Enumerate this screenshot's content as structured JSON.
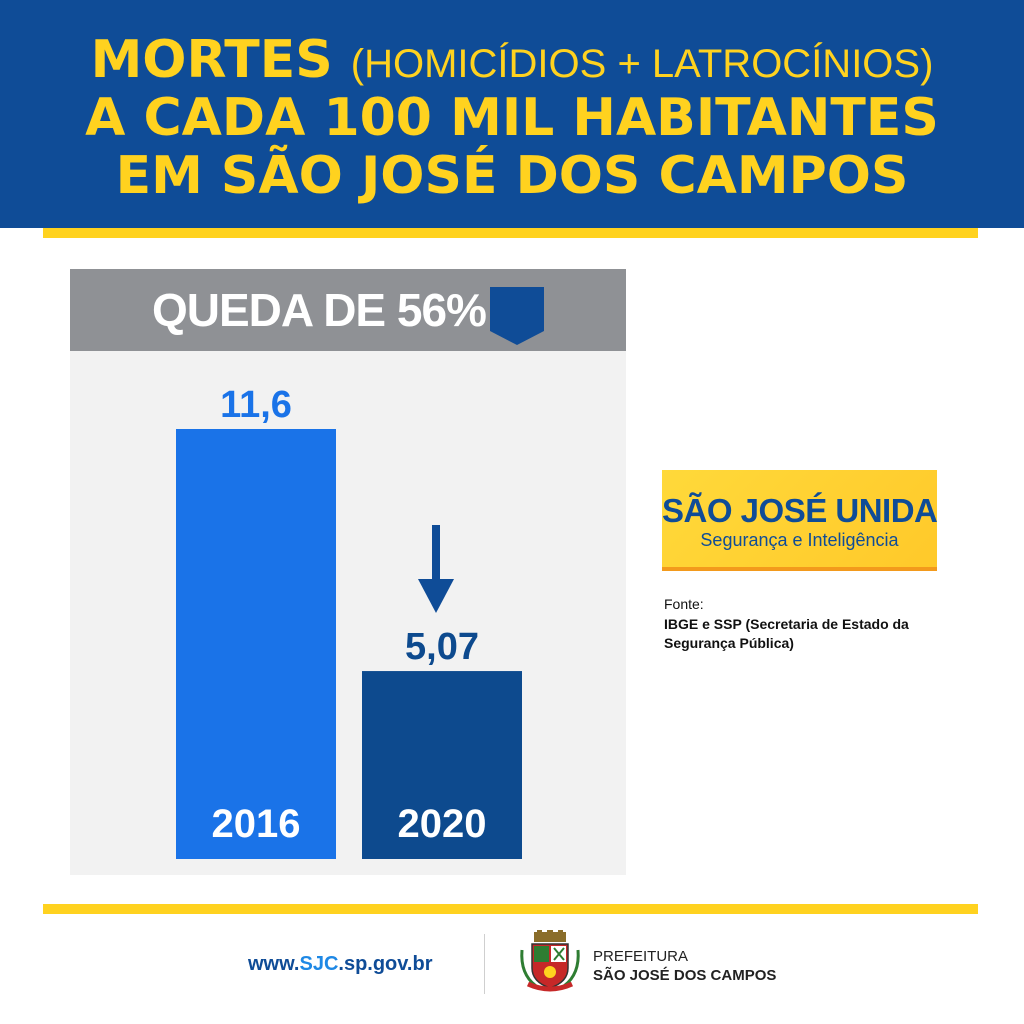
{
  "header": {
    "line1_main": "MORTES",
    "line1_paren": "(HOMICÍDIOS + LATROCÍNIOS)",
    "line2": "A CADA 100 MIL HABITANTES",
    "line3": "EM SÃO JOSÉ DOS CAMPOS"
  },
  "banner": {
    "text": "QUEDA DE 56%",
    "badge_icon": "down-shield-icon"
  },
  "chart_data": {
    "type": "bar",
    "title": "",
    "xlabel": "",
    "ylabel": "",
    "categories": [
      "2016",
      "2020"
    ],
    "values": [
      11.6,
      5.07
    ],
    "value_labels": [
      "11,6",
      "5,07"
    ],
    "ylim": [
      0,
      11.6
    ],
    "grid": false,
    "colors": [
      "#1a73e8",
      "#0d4a8e"
    ],
    "annotation_icon": "down-arrow-icon"
  },
  "brand": {
    "title": "SÃO JOSÉ UNIDA",
    "subtitle": "Segurança e Inteligência"
  },
  "source": {
    "label": "Fonte:",
    "text": "IBGE e SSP (Secretaria de Estado da Segurança Pública)"
  },
  "footer": {
    "site_prefix": "www.",
    "site_highlight": "SJC",
    "site_suffix": ".sp.gov.br",
    "crest_icon": "coat-of-arms-icon",
    "org_line1": "PREFEITURA",
    "org_line2": "SÃO JOSÉ DOS CAMPOS"
  },
  "colors": {
    "navy": "#0f4c97",
    "yellow": "#ffd21f",
    "bar_2016": "#1a73e8",
    "bar_2020": "#0d4a8e",
    "banner_gray": "#8f9195",
    "panel_bg": "#f2f2f2"
  }
}
